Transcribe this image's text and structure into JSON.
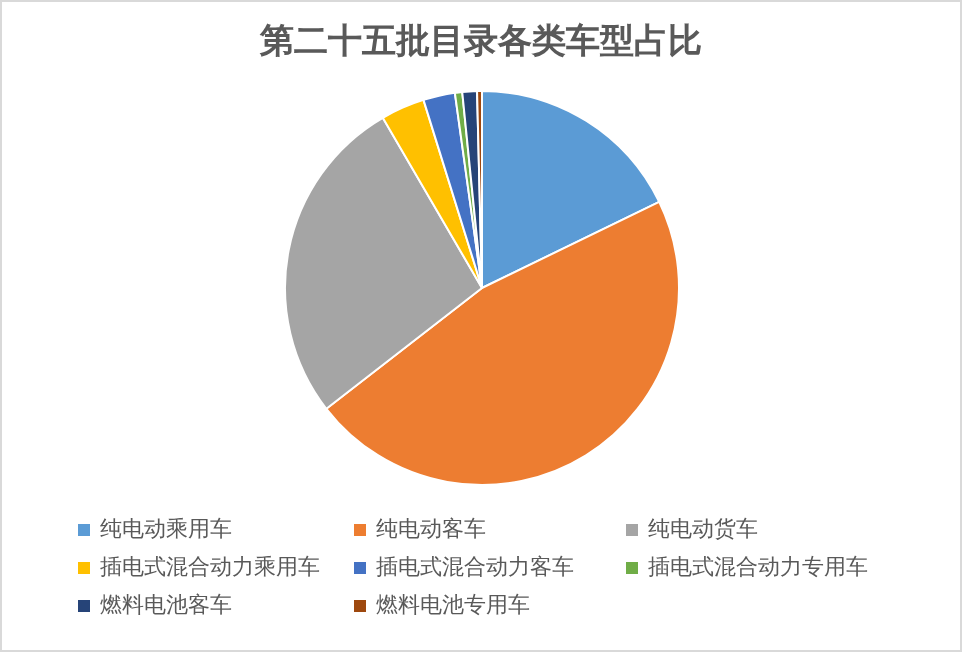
{
  "chart_data": {
    "type": "pie",
    "title": "第二十五批目录各类车型占比",
    "categories": [
      "纯电动乘用车",
      "纯电动客车",
      "纯电动货车",
      "插电式混合动力乘用车",
      "插电式混合动力客车",
      "插电式混合动力专用车",
      "燃料电池客车",
      "燃料电池专用车"
    ],
    "values": [
      17.8,
      46.7,
      27.1,
      3.6,
      2.6,
      0.6,
      1.2,
      0.4
    ],
    "colors": [
      "#5b9bd5",
      "#ed7d31",
      "#a5a5a5",
      "#ffc000",
      "#4472c4",
      "#70ad47",
      "#264478",
      "#9e480e"
    ],
    "legend": "bottom"
  }
}
